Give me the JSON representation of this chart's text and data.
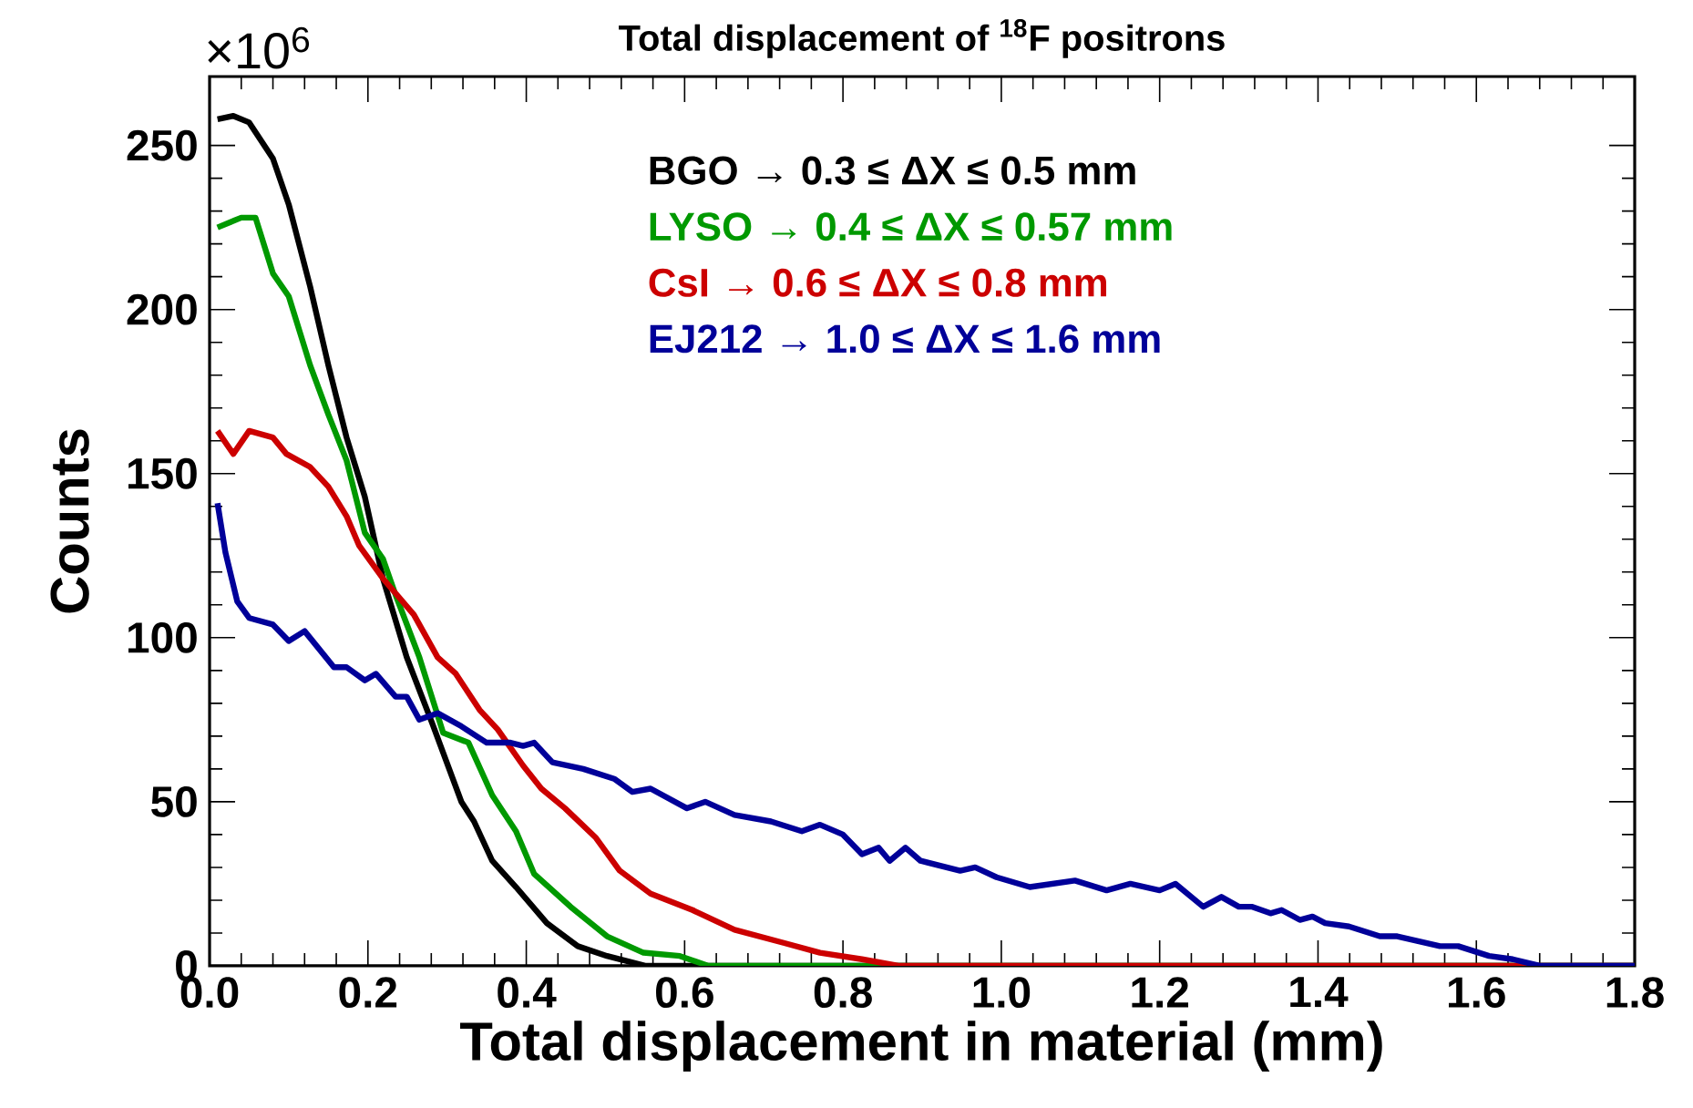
{
  "chart_data": {
    "type": "line",
    "title": "Total displacement of $^{18}$F positrons",
    "xlabel": "Total displacement in material (mm)",
    "ylabel": "Counts",
    "annotations": [
      "×10$^{6}$"
    ],
    "xlim": [
      0,
      1.8
    ],
    "ylim": [
      0,
      271
    ],
    "xticks": [
      {
        "value": 0,
        "label": "0.0"
      },
      0.2,
      0.4,
      0.6,
      0.8,
      {
        "value": 1,
        "label": "1.0"
      },
      1.2,
      1.4,
      1.6,
      1.8
    ],
    "yticks": [
      0,
      50,
      100,
      150,
      200,
      250
    ],
    "grid": false,
    "legend": "top",
    "marker": "none",
    "line_style": "solid",
    "series": [
      {
        "name": "BGO    → 0.3 ≤  ΔX ≤ 0.5 mm",
        "color": "#000000",
        "x": [
          0.01,
          0.03,
          0.05,
          0.08,
          0.1,
          0.127,
          0.15,
          0.173,
          0.196,
          0.219,
          0.249,
          0.281,
          0.318,
          0.334,
          0.357,
          0.387,
          0.426,
          0.465,
          0.502,
          0.55,
          1.8
        ],
        "values": [
          258,
          259,
          257,
          246,
          232,
          207,
          183,
          161,
          143,
          118,
          94,
          74,
          50,
          44,
          32,
          24,
          13,
          6,
          3,
          0,
          0
        ]
      },
      {
        "name": "LYSO  → 0.4 ≤ ΔX ≤ 0.57 mm",
        "color": "#009900",
        "x": [
          0.01,
          0.04,
          0.058,
          0.08,
          0.1,
          0.127,
          0.15,
          0.173,
          0.196,
          0.219,
          0.235,
          0.265,
          0.295,
          0.327,
          0.357,
          0.387,
          0.41,
          0.456,
          0.502,
          0.548,
          0.594,
          0.63,
          1.8
        ],
        "values": [
          225,
          228,
          228,
          211,
          204,
          183,
          168,
          154,
          132,
          124,
          113,
          94,
          71,
          68,
          52,
          41,
          28,
          18,
          9,
          4,
          3,
          0,
          0
        ]
      },
      {
        "name": "CsI → 0.6 ≤ ΔX ≤ 0.8 mm",
        "color": "#cc0000",
        "x": [
          0.01,
          0.03,
          0.05,
          0.08,
          0.097,
          0.127,
          0.15,
          0.173,
          0.189,
          0.219,
          0.258,
          0.288,
          0.311,
          0.341,
          0.364,
          0.396,
          0.419,
          0.449,
          0.488,
          0.518,
          0.557,
          0.61,
          0.663,
          0.725,
          0.771,
          0.824,
          0.87,
          1.8
        ],
        "values": [
          163,
          156,
          163,
          161,
          156,
          152,
          146,
          137,
          128,
          118,
          107,
          94,
          89,
          78,
          72,
          61,
          54,
          48,
          39,
          29,
          22,
          17,
          11,
          7,
          4,
          2,
          0,
          0
        ]
      },
      {
        "name": "EJ212 → 1.0 ≤ ΔX ≤ 1.6 mm",
        "color": "#000099",
        "x": [
          0.01,
          0.02,
          0.035,
          0.05,
          0.08,
          0.1,
          0.12,
          0.157,
          0.173,
          0.196,
          0.21,
          0.235,
          0.249,
          0.265,
          0.288,
          0.318,
          0.35,
          0.38,
          0.396,
          0.41,
          0.433,
          0.472,
          0.511,
          0.534,
          0.557,
          0.603,
          0.626,
          0.663,
          0.709,
          0.748,
          0.771,
          0.8,
          0.824,
          0.845,
          0.859,
          0.879,
          0.898,
          0.948,
          0.967,
          0.994,
          1.036,
          1.093,
          1.133,
          1.163,
          1.2,
          1.22,
          1.255,
          1.278,
          1.3,
          1.317,
          1.34,
          1.354,
          1.377,
          1.393,
          1.409,
          1.439,
          1.478,
          1.5,
          1.554,
          1.577,
          1.616,
          1.646,
          1.68,
          1.8
        ],
        "values": [
          141,
          126,
          111,
          106,
          104,
          99,
          102,
          91,
          91,
          87,
          89,
          82,
          82,
          75,
          77,
          73,
          68,
          68,
          67,
          68,
          62,
          60,
          57,
          53,
          54,
          48,
          50,
          46,
          44,
          41,
          43,
          40,
          34,
          36,
          32,
          36,
          32,
          29,
          30,
          27,
          24,
          26,
          23,
          25,
          23,
          25,
          18,
          21,
          18,
          18,
          16,
          17,
          14,
          15,
          13,
          12,
          9,
          9,
          6,
          6,
          3,
          2,
          0,
          0
        ]
      }
    ]
  }
}
